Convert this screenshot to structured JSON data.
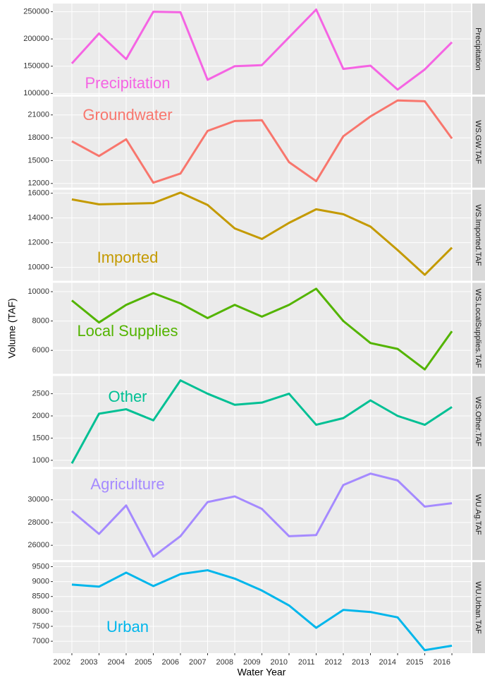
{
  "y_axis_label": "Volume (TAF)",
  "x_axis": {
    "label": "Water Year",
    "xlim": [
      2001.3,
      2016.7
    ],
    "xticks": [
      2002,
      2003,
      2004,
      2005,
      2006,
      2007,
      2008,
      2009,
      2010,
      2011,
      2012,
      2013,
      2014,
      2015,
      2016
    ],
    "grid": true
  },
  "chart_data": [
    {
      "type": "line",
      "strip": "Precipitation",
      "annotation": "Precipitation",
      "color": "#f564e3",
      "x": [
        2002,
        2003,
        2004,
        2005,
        2006,
        2007,
        2008,
        2009,
        2010,
        2011,
        2012,
        2013,
        2014,
        2015,
        2016
      ],
      "values": [
        155000,
        210000,
        163000,
        250000,
        249000,
        125000,
        150000,
        152000,
        203000,
        254000,
        145000,
        151000,
        107000,
        144000,
        194000
      ],
      "ylim": [
        98000,
        265000
      ],
      "yticks": [
        100000,
        150000,
        200000,
        250000
      ],
      "grid": true
    },
    {
      "type": "line",
      "strip": "WS.GW.TAF",
      "annotation": "Groundwater",
      "color": "#f8766d",
      "x": [
        2002,
        2003,
        2004,
        2005,
        2006,
        2007,
        2008,
        2009,
        2010,
        2011,
        2012,
        2013,
        2014,
        2015,
        2016
      ],
      "values": [
        17540,
        15600,
        17800,
        12100,
        13300,
        18900,
        20200,
        20300,
        14800,
        12300,
        18200,
        20800,
        22900,
        22800,
        17900
      ],
      "ylim": [
        11450,
        23400
      ],
      "yticks": [
        12000,
        15000,
        18000,
        21000
      ],
      "grid": true
    },
    {
      "type": "line",
      "strip": "WS.Imported.TAF",
      "annotation": "Imported",
      "color": "#c49a00",
      "x": [
        2002,
        2003,
        2004,
        2005,
        2006,
        2007,
        2008,
        2009,
        2010,
        2011,
        2012,
        2013,
        2014,
        2015,
        2016
      ],
      "values": [
        15500,
        15100,
        15150,
        15200,
        16050,
        15050,
        13150,
        12300,
        13600,
        14700,
        14300,
        13300,
        11400,
        9400,
        11600
      ],
      "ylim": [
        8920,
        16280
      ],
      "yticks": [
        10000,
        12000,
        14000,
        16000
      ],
      "grid": true
    },
    {
      "type": "line",
      "strip": "WS.LocalSupplies.TAF",
      "annotation": "Local Supplies",
      "color": "#53b400",
      "x": [
        2002,
        2003,
        2004,
        2005,
        2006,
        2007,
        2008,
        2009,
        2010,
        2011,
        2012,
        2013,
        2014,
        2015,
        2016
      ],
      "values": [
        9400,
        7900,
        9100,
        9900,
        9200,
        8200,
        9100,
        8300,
        9100,
        10200,
        8000,
        6500,
        6100,
        4700,
        7300
      ],
      "ylim": [
        4400,
        10600
      ],
      "yticks": [
        6000,
        8000,
        10000
      ],
      "grid": true
    },
    {
      "type": "line",
      "strip": "WS.Other.TAF",
      "annotation": "Other",
      "color": "#00c094",
      "x": [
        2002,
        2003,
        2004,
        2005,
        2006,
        2007,
        2008,
        2009,
        2010,
        2011,
        2012,
        2013,
        2014,
        2015,
        2016
      ],
      "values": [
        930,
        2050,
        2150,
        1900,
        2800,
        2500,
        2250,
        2300,
        2500,
        1800,
        1950,
        2350,
        2000,
        1800,
        2200
      ],
      "ylim": [
        850,
        2900
      ],
      "yticks": [
        1000,
        1500,
        2000,
        2500
      ],
      "grid": true
    },
    {
      "type": "line",
      "strip": "WU.Ag.TAF",
      "annotation": "Agriculture",
      "color": "#a58aff",
      "x": [
        2002,
        2003,
        2004,
        2005,
        2006,
        2007,
        2008,
        2009,
        2010,
        2011,
        2012,
        2013,
        2014,
        2015,
        2016
      ],
      "values": [
        29000,
        27000,
        29500,
        25000,
        26800,
        29800,
        30300,
        29200,
        26800,
        26900,
        31300,
        32300,
        31700,
        29400,
        29700
      ],
      "ylim": [
        24700,
        32700
      ],
      "yticks": [
        26000,
        28000,
        30000
      ],
      "grid": true
    },
    {
      "type": "line",
      "strip": "WU.Urban.TAF",
      "annotation": "Urban",
      "color": "#00b6eb",
      "x": [
        2002,
        2003,
        2004,
        2005,
        2006,
        2007,
        2008,
        2009,
        2010,
        2011,
        2012,
        2013,
        2014,
        2015,
        2016
      ],
      "values": [
        8900,
        8830,
        9300,
        8850,
        9250,
        9380,
        9100,
        8700,
        8200,
        7450,
        8050,
        7980,
        7800,
        6700,
        6850
      ],
      "ylim": [
        6600,
        9650
      ],
      "yticks": [
        7000,
        7500,
        8000,
        8500,
        9000,
        9500
      ],
      "grid": true
    }
  ]
}
